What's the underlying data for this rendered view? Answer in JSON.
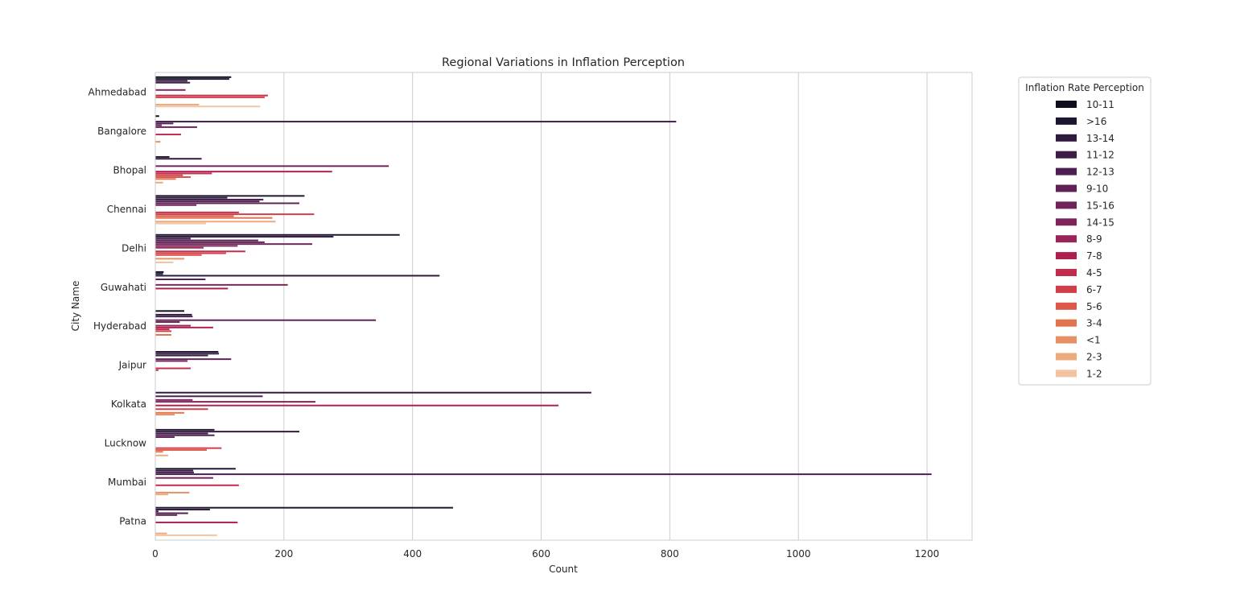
{
  "chart_data": {
    "type": "bar",
    "orientation": "horizontal",
    "title": "Regional Variations in Inflation Perception",
    "xlabel": "Count",
    "ylabel": "City Name",
    "xlim": [
      0,
      1270
    ],
    "xticks": [
      0,
      200,
      400,
      600,
      800,
      1000,
      1200
    ],
    "grid": "vertical",
    "legend": {
      "title": "Inflation Rate Perception",
      "placement": "outside-top-right"
    },
    "categories": [
      "Ahmedabad",
      "Bangalore",
      "Bhopal",
      "Chennai",
      "Delhi",
      "Guwahati",
      "Hyderabad",
      "Jaipur",
      "Kolkata",
      "Lucknow",
      "Mumbai",
      "Patna"
    ],
    "series": [
      {
        "name": "10-11",
        "color": "#0f0c1e",
        "values": [
          118,
          6,
          0,
          0,
          0,
          13,
          45,
          0,
          0,
          0,
          0,
          0
        ]
      },
      {
        "name": ">16",
        "color": "#1e1530",
        "values": [
          115,
          0,
          22,
          232,
          380,
          12,
          0,
          98,
          0,
          92,
          125,
          463
        ]
      },
      {
        "name": "13-14",
        "color": "#2f1a3e",
        "values": [
          50,
          0,
          72,
          112,
          277,
          442,
          57,
          99,
          678,
          224,
          59,
          85
        ]
      },
      {
        "name": "11-12",
        "color": "#3d1c47",
        "values": [
          54,
          810,
          0,
          168,
          55,
          0,
          58,
          82,
          0,
          82,
          60,
          5
        ]
      },
      {
        "name": "12-13",
        "color": "#4d1e50",
        "values": [
          0,
          28,
          0,
          162,
          160,
          78,
          0,
          0,
          167,
          92,
          1207,
          51
        ]
      },
      {
        "name": "9-10",
        "color": "#602255",
        "values": [
          0,
          10,
          0,
          224,
          170,
          0,
          343,
          118,
          0,
          30,
          0,
          34
        ]
      },
      {
        "name": "15-16",
        "color": "#6f2359",
        "values": [
          0,
          65,
          363,
          64,
          244,
          0,
          38,
          50,
          58,
          0,
          90,
          0
        ]
      },
      {
        "name": "14-15",
        "color": "#7f245b",
        "values": [
          47,
          0,
          0,
          0,
          128,
          206,
          0,
          0,
          249,
          0,
          0,
          0
        ]
      },
      {
        "name": "8-9",
        "color": "#992457",
        "values": [
          0,
          0,
          0,
          0,
          75,
          0,
          55,
          0,
          0,
          0,
          0,
          0
        ]
      },
      {
        "name": "7-8",
        "color": "#ae1f51",
        "values": [
          0,
          0,
          275,
          0,
          0,
          113,
          90,
          0,
          627,
          0,
          0,
          128
        ]
      },
      {
        "name": "4-5",
        "color": "#c32d4c",
        "values": [
          175,
          40,
          88,
          130,
          140,
          0,
          22,
          55,
          0,
          0,
          130,
          0
        ]
      },
      {
        "name": "6-7",
        "color": "#d13e4a",
        "values": [
          170,
          0,
          43,
          247,
          110,
          0,
          25,
          5,
          82,
          103,
          0,
          0
        ]
      },
      {
        "name": "5-6",
        "color": "#db5748",
        "values": [
          0,
          0,
          55,
          122,
          72,
          0,
          0,
          0,
          0,
          80,
          0,
          0
        ]
      },
      {
        "name": "3-4",
        "color": "#e1744e",
        "values": [
          0,
          0,
          32,
          182,
          0,
          0,
          25,
          0,
          45,
          12,
          0,
          0
        ]
      },
      {
        "name": "<1",
        "color": "#e79063",
        "values": [
          0,
          8,
          0,
          0,
          45,
          0,
          0,
          0,
          30,
          0,
          53,
          0
        ]
      },
      {
        "name": "2-3",
        "color": "#edaa7d",
        "values": [
          68,
          0,
          12,
          187,
          0,
          0,
          0,
          0,
          0,
          20,
          20,
          18
        ]
      },
      {
        "name": "1-2",
        "color": "#f2c39e",
        "values": [
          163,
          0,
          0,
          79,
          28,
          0,
          0,
          0,
          0,
          0,
          0,
          96
        ]
      }
    ]
  }
}
